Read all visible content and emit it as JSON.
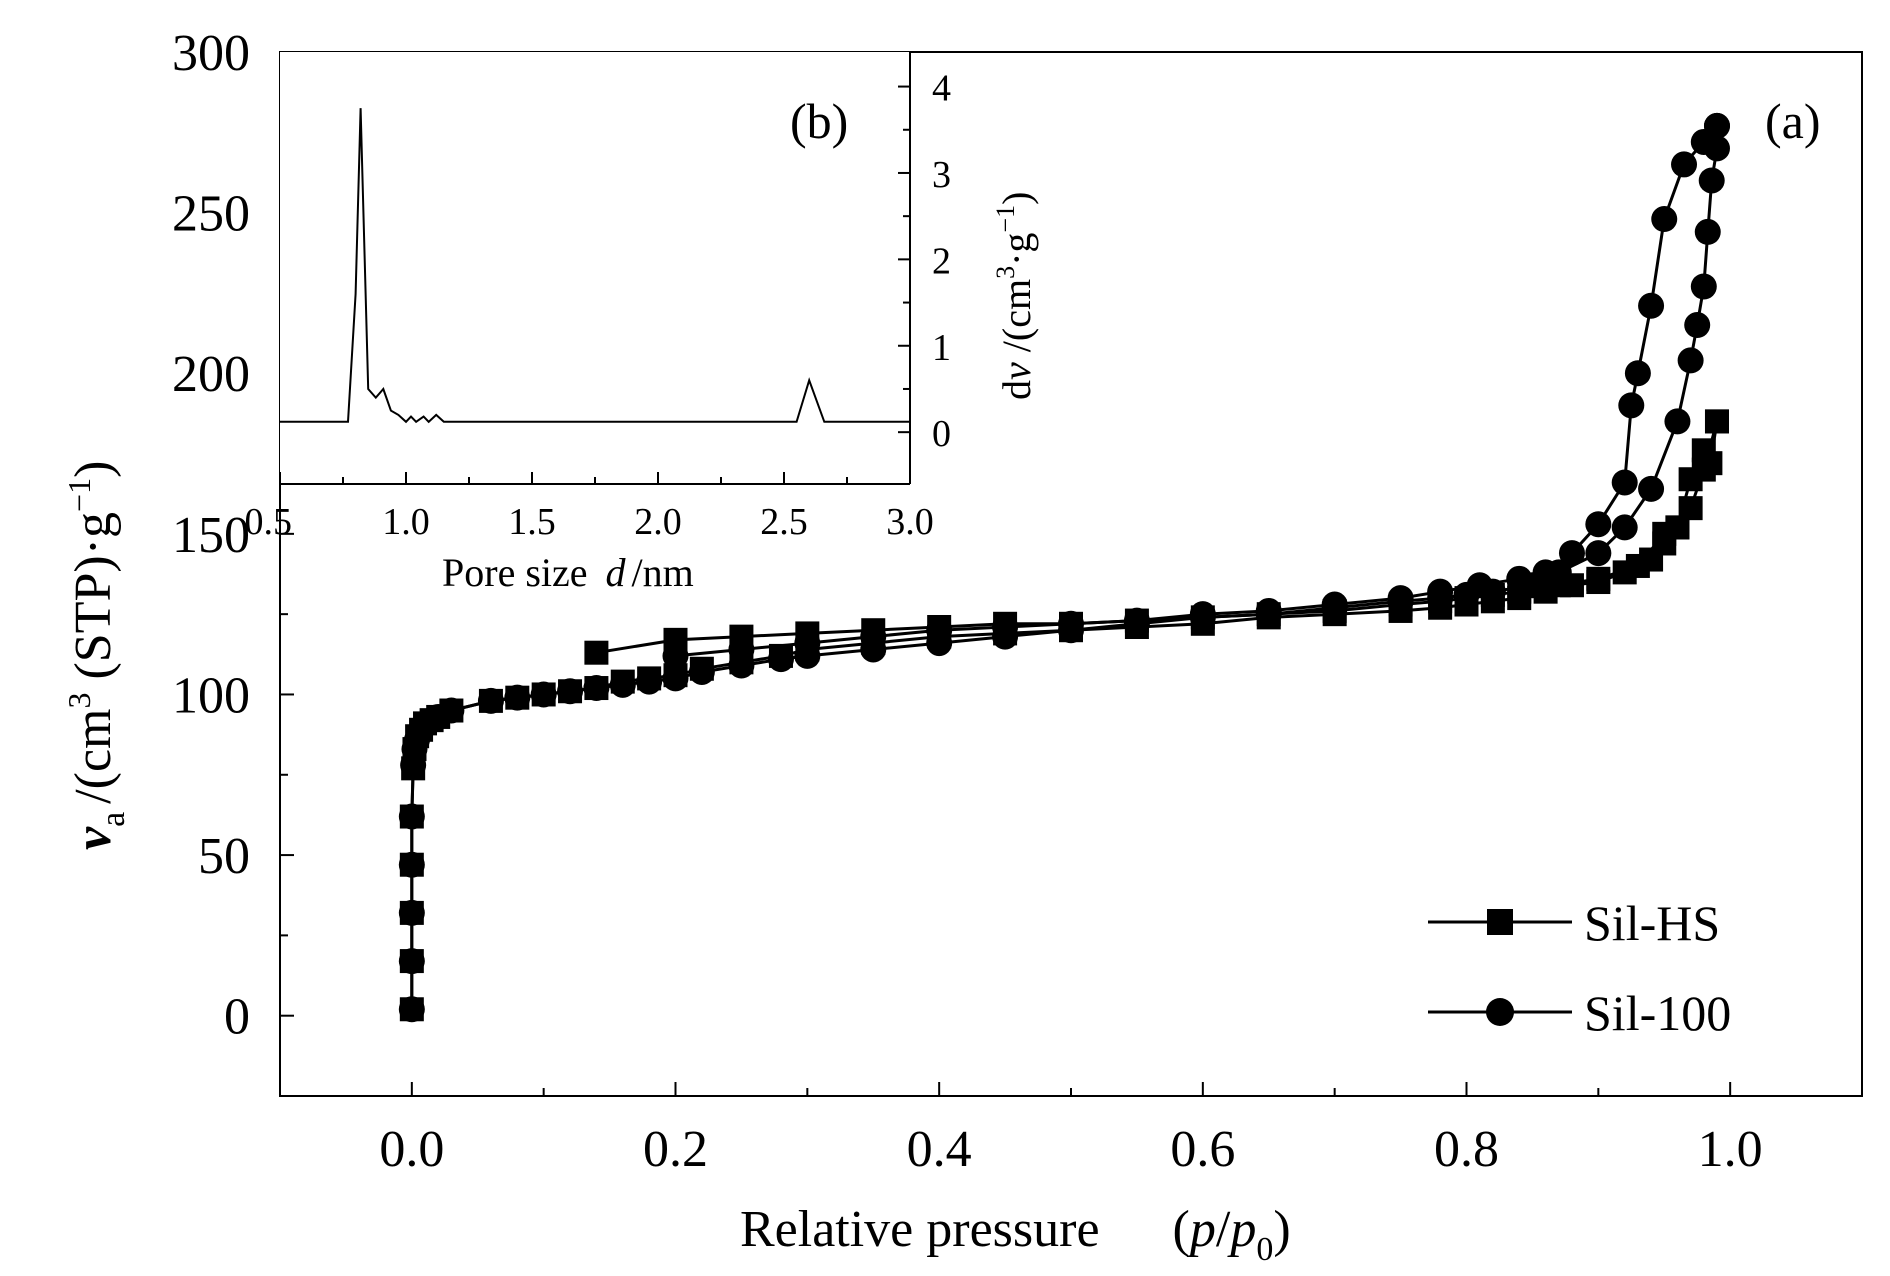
{
  "chart_data": [
    {
      "panel_label": "(a)",
      "type": "line",
      "xlabel": {
        "main": "Relative pressure",
        "paren_open": "(",
        "p": "p",
        "slash": "/",
        "p0": "p",
        "p0_sub": "0",
        "paren_close": ")"
      },
      "ylabel": {
        "v": "v",
        "v_sub": "a",
        "unit_open": "/(cm",
        "unit_sup": "3",
        "unit_mid": " (STP)·g",
        "unit_sup2": "−1",
        "unit_close": ")"
      },
      "xlim": [
        -0.1,
        1.1
      ],
      "ylim": [
        -25,
        300
      ],
      "xticks": [
        "0.0",
        "0.2",
        "0.4",
        "0.6",
        "0.8",
        "1.0"
      ],
      "xtick_values": [
        0.0,
        0.2,
        0.4,
        0.6,
        0.8,
        1.0
      ],
      "yticks": [
        "0",
        "50",
        "100",
        "150",
        "200",
        "250",
        "300"
      ],
      "ytick_values": [
        0,
        50,
        100,
        150,
        200,
        250,
        300
      ],
      "legend_position": "bottom-right",
      "series": [
        {
          "name": "Sil-HS",
          "marker": "square",
          "adsorption": [
            [
              0.0,
              2
            ],
            [
              0.0,
              17
            ],
            [
              0.0,
              32
            ],
            [
              0.0,
              47
            ],
            [
              0.0,
              62
            ],
            [
              0.001,
              77
            ],
            [
              0.002,
              83
            ],
            [
              0.004,
              87
            ],
            [
              0.007,
              89
            ],
            [
              0.01,
              91
            ],
            [
              0.015,
              92
            ],
            [
              0.02,
              93
            ],
            [
              0.03,
              95
            ],
            [
              0.06,
              98
            ],
            [
              0.08,
              99
            ],
            [
              0.1,
              100
            ],
            [
              0.12,
              101
            ],
            [
              0.14,
              102
            ],
            [
              0.16,
              104
            ],
            [
              0.18,
              105
            ],
            [
              0.2,
              106
            ],
            [
              0.22,
              108
            ],
            [
              0.25,
              110
            ],
            [
              0.28,
              112
            ],
            [
              0.3,
              114
            ],
            [
              0.35,
              116
            ],
            [
              0.4,
              118
            ],
            [
              0.45,
              119
            ],
            [
              0.5,
              120
            ],
            [
              0.55,
              121
            ],
            [
              0.6,
              122
            ],
            [
              0.65,
              124
            ],
            [
              0.7,
              125
            ],
            [
              0.75,
              126
            ],
            [
              0.78,
              127
            ],
            [
              0.8,
              128
            ],
            [
              0.82,
              129
            ],
            [
              0.84,
              130
            ],
            [
              0.86,
              132
            ],
            [
              0.88,
              134
            ],
            [
              0.9,
              135
            ],
            [
              0.92,
              138
            ],
            [
              0.94,
              142
            ],
            [
              0.95,
              147
            ],
            [
              0.96,
              152
            ],
            [
              0.97,
              158
            ],
            [
              0.98,
              170
            ],
            [
              0.99,
              185
            ]
          ],
          "desorption": [
            [
              0.99,
              185
            ],
            [
              0.985,
              172
            ],
            [
              0.98,
              176
            ],
            [
              0.97,
              167
            ],
            [
              0.96,
              152
            ],
            [
              0.95,
              150
            ],
            [
              0.93,
              140
            ],
            [
              0.9,
              136
            ],
            [
              0.87,
              134
            ],
            [
              0.84,
              132
            ],
            [
              0.82,
              131
            ],
            [
              0.8,
              130
            ],
            [
              0.78,
              129
            ],
            [
              0.75,
              128
            ],
            [
              0.7,
              126
            ],
            [
              0.65,
              125
            ],
            [
              0.6,
              124
            ],
            [
              0.55,
              123
            ],
            [
              0.5,
              122
            ],
            [
              0.45,
              122
            ],
            [
              0.4,
              121
            ],
            [
              0.35,
              120
            ],
            [
              0.3,
              119
            ],
            [
              0.25,
              118
            ],
            [
              0.2,
              117
            ],
            [
              0.14,
              113
            ]
          ]
        },
        {
          "name": "Sil-100",
          "marker": "circle",
          "adsorption": [
            [
              0.0,
              2
            ],
            [
              0.0,
              17
            ],
            [
              0.0,
              32
            ],
            [
              0.0,
              47
            ],
            [
              0.0,
              62
            ],
            [
              0.001,
              78
            ],
            [
              0.002,
              83
            ],
            [
              0.004,
              86
            ],
            [
              0.007,
              89
            ],
            [
              0.01,
              91
            ],
            [
              0.015,
              92
            ],
            [
              0.02,
              93
            ],
            [
              0.03,
              95
            ],
            [
              0.06,
              98
            ],
            [
              0.08,
              99
            ],
            [
              0.1,
              100
            ],
            [
              0.12,
              101
            ],
            [
              0.14,
              102
            ],
            [
              0.16,
              103
            ],
            [
              0.18,
              104
            ],
            [
              0.2,
              105
            ],
            [
              0.22,
              107
            ],
            [
              0.25,
              109
            ],
            [
              0.28,
              111
            ],
            [
              0.3,
              112
            ],
            [
              0.35,
              114
            ],
            [
              0.4,
              116
            ],
            [
              0.45,
              118
            ],
            [
              0.5,
              120
            ],
            [
              0.55,
              122
            ],
            [
              0.6,
              124
            ],
            [
              0.65,
              125
            ],
            [
              0.7,
              127
            ],
            [
              0.75,
              129
            ],
            [
              0.78,
              130
            ],
            [
              0.8,
              131
            ],
            [
              0.82,
              132
            ],
            [
              0.85,
              134
            ],
            [
              0.87,
              138
            ],
            [
              0.9,
              144
            ],
            [
              0.92,
              152
            ],
            [
              0.94,
              164
            ],
            [
              0.96,
              185
            ],
            [
              0.97,
              204
            ],
            [
              0.975,
              215
            ],
            [
              0.98,
              227
            ],
            [
              0.983,
              244
            ],
            [
              0.986,
              260
            ],
            [
              0.99,
              270
            ],
            [
              0.99,
              277
            ]
          ],
          "desorption": [
            [
              0.99,
              277
            ],
            [
              0.98,
              272
            ],
            [
              0.965,
              265
            ],
            [
              0.95,
              248
            ],
            [
              0.94,
              221
            ],
            [
              0.93,
              200
            ],
            [
              0.925,
              190
            ],
            [
              0.92,
              166
            ],
            [
              0.9,
              153
            ],
            [
              0.88,
              144
            ],
            [
              0.86,
              138
            ],
            [
              0.84,
              136
            ],
            [
              0.81,
              134
            ],
            [
              0.78,
              132
            ],
            [
              0.75,
              130
            ],
            [
              0.7,
              128
            ],
            [
              0.65,
              126
            ],
            [
              0.6,
              125
            ],
            [
              0.55,
              123
            ],
            [
              0.5,
              122
            ],
            [
              0.45,
              121
            ],
            [
              0.4,
              120
            ],
            [
              0.35,
              118
            ],
            [
              0.3,
              116
            ],
            [
              0.25,
              114
            ],
            [
              0.2,
              112
            ]
          ]
        }
      ]
    },
    {
      "panel_label": "(b)",
      "type": "line",
      "xlabel": {
        "main": "Pore size",
        "var": "d",
        "unit": "/nm"
      },
      "ylabel": {
        "d": "d",
        "v": "v",
        "unit_open": " /(cm",
        "unit_sup": "3",
        "unit_mid": "·g",
        "unit_sup2": "−1",
        "unit_close": ")"
      },
      "xlim": [
        0.5,
        3.0
      ],
      "ylim": [
        -0.6,
        4.4
      ],
      "xticks": [
        "0.5",
        "1.0",
        "1.5",
        "2.0",
        "2.5",
        "3.0"
      ],
      "xtick_values": [
        0.5,
        1.0,
        1.5,
        2.0,
        2.5,
        3.0
      ],
      "yticks": [
        "0",
        "1",
        "2",
        "3",
        "4"
      ],
      "ytick_values": [
        0,
        1,
        2,
        3,
        4
      ],
      "y_axis_side": "right",
      "series": [
        {
          "name": "",
          "points": [
            [
              0.5,
              0.12
            ],
            [
              0.77,
              0.12
            ],
            [
              0.8,
              1.6
            ],
            [
              0.82,
              3.75
            ],
            [
              0.85,
              0.5
            ],
            [
              0.88,
              0.4
            ],
            [
              0.91,
              0.5
            ],
            [
              0.94,
              0.25
            ],
            [
              0.97,
              0.2
            ],
            [
              1.0,
              0.12
            ],
            [
              1.02,
              0.18
            ],
            [
              1.04,
              0.12
            ],
            [
              1.07,
              0.18
            ],
            [
              1.09,
              0.12
            ],
            [
              1.12,
              0.2
            ],
            [
              1.15,
              0.12
            ],
            [
              2.55,
              0.12
            ],
            [
              2.6,
              0.6
            ],
            [
              2.66,
              0.12
            ],
            [
              3.0,
              0.12
            ]
          ]
        }
      ]
    }
  ]
}
